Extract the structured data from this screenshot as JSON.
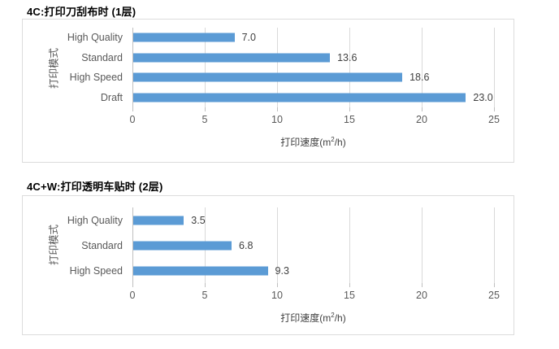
{
  "chart_data": [
    {
      "type": "bar",
      "orientation": "horizontal",
      "title": "4C:打印刀刮布时 (1层)",
      "ylabel": "打印模式",
      "xlabel": "打印速度(m²/h)",
      "xlabel_pre": "打印速度(m",
      "xlabel_sup": "2",
      "xlabel_post": "/h)",
      "categories": [
        "High Quality",
        "Standard",
        "High Speed",
        "Draft"
      ],
      "values": [
        7.0,
        13.6,
        18.6,
        23.0
      ],
      "value_labels": [
        "7.0",
        "13.6",
        "18.6",
        "23.0"
      ],
      "xlim": [
        0,
        25
      ],
      "ticks": [
        0,
        5,
        10,
        15,
        20,
        25
      ],
      "tick_labels": [
        "0",
        "5",
        "10",
        "15",
        "20",
        "25"
      ],
      "grid": true,
      "legend": false,
      "bar_color": "#5b9bd5"
    },
    {
      "type": "bar",
      "orientation": "horizontal",
      "title": "4C+W:打印透明车贴时 (2层)",
      "ylabel": "打印模式",
      "xlabel": "打印速度(m²/h)",
      "xlabel_pre": "打印速度(m",
      "xlabel_sup": "2",
      "xlabel_post": "/h)",
      "categories": [
        "High Quality",
        "Standard",
        "High Speed"
      ],
      "values": [
        3.5,
        6.8,
        9.3
      ],
      "value_labels": [
        "3.5",
        "6.8",
        "9.3"
      ],
      "xlim": [
        0,
        25
      ],
      "ticks": [
        0,
        5,
        10,
        15,
        20,
        25
      ],
      "tick_labels": [
        "0",
        "5",
        "10",
        "15",
        "20",
        "25"
      ],
      "grid": true,
      "legend": false,
      "bar_color": "#5b9bd5"
    }
  ]
}
